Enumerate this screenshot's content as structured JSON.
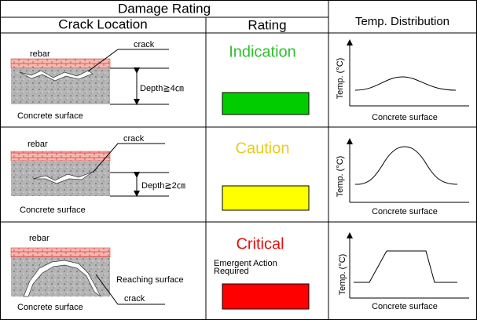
{
  "header": {
    "title": "Damage Rating",
    "temp_title": "Temp. Distribution",
    "columns": [
      "Crack Location",
      "Rating"
    ]
  },
  "rows": [
    {
      "rebar": "rebar",
      "crack": "crack",
      "depth": "Depth≧4㎝",
      "surface": "Concrete surface",
      "rating": "Indication",
      "temp_axis": "Temp. (°C)",
      "temp_x": "Concrete surface"
    },
    {
      "rebar": "rebar",
      "crack": "crack",
      "depth": "Depth≧2㎝",
      "surface": "Concrete surface",
      "rating": "Caution",
      "temp_axis": "Temp. (°C)",
      "temp_x": "Concrete surface"
    },
    {
      "rebar": "rebar",
      "crack": "crack",
      "note": "Reaching surface",
      "surface": "Concrete surface",
      "rating": "Critical",
      "action": [
        "Emergent Action",
        "Required"
      ],
      "temp_axis": "Temp. (°C)",
      "temp_x": "Concrete surface"
    }
  ]
}
